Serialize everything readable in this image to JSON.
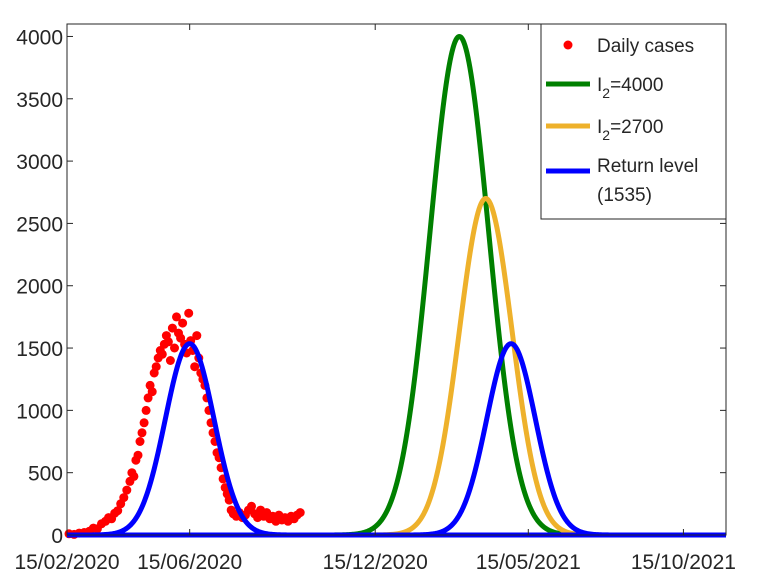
{
  "chart_data": {
    "type": "line",
    "xlim": [
      "2020-02-15",
      "2021-11-26"
    ],
    "ylim": [
      0,
      4100
    ],
    "x_ticks": [
      {
        "date": "2020-02-15",
        "label": "15/02/2020"
      },
      {
        "date": "2020-06-15",
        "label": "15/06/2020"
      },
      {
        "date": "2020-12-15",
        "label": "15/12/2020"
      },
      {
        "date": "2021-05-15",
        "label": "15/05/2021"
      },
      {
        "date": "2021-10-15",
        "label": "15/10/2021"
      }
    ],
    "y_ticks": [
      0,
      500,
      1000,
      1500,
      2000,
      2500,
      3000,
      3500,
      4000
    ],
    "grid": false,
    "legend_position": "top-right",
    "legend": [
      {
        "series": "daily",
        "label": "Daily cases"
      },
      {
        "series": "g4000",
        "label_main": "I",
        "label_sub": "2",
        "label_rest": "=4000"
      },
      {
        "series": "g2700",
        "label_main": "I",
        "label_sub": "2",
        "label_rest": "=2700"
      },
      {
        "series": "ret",
        "label_lines": [
          "Return level",
          "(1535)"
        ]
      }
    ],
    "series": [
      {
        "id": "daily",
        "kind": "scatter",
        "color": "#ff0000",
        "points": [
          [
            "2020-02-17",
            10
          ],
          [
            "2020-02-22",
            5
          ],
          [
            "2020-02-27",
            15
          ],
          [
            "2020-03-03",
            20
          ],
          [
            "2020-03-08",
            30
          ],
          [
            "2020-03-12",
            55
          ],
          [
            "2020-03-16",
            50
          ],
          [
            "2020-03-20",
            90
          ],
          [
            "2020-03-24",
            110
          ],
          [
            "2020-03-27",
            140
          ],
          [
            "2020-03-30",
            130
          ],
          [
            "2020-04-02",
            175
          ],
          [
            "2020-04-05",
            195
          ],
          [
            "2020-04-08",
            250
          ],
          [
            "2020-04-11",
            300
          ],
          [
            "2020-04-14",
            360
          ],
          [
            "2020-04-17",
            430
          ],
          [
            "2020-04-19",
            500
          ],
          [
            "2020-04-21",
            470
          ],
          [
            "2020-04-23",
            600
          ],
          [
            "2020-04-25",
            640
          ],
          [
            "2020-04-27",
            750
          ],
          [
            "2020-04-29",
            820
          ],
          [
            "2020-05-01",
            900
          ],
          [
            "2020-05-03",
            1000
          ],
          [
            "2020-05-05",
            1100
          ],
          [
            "2020-05-07",
            1200
          ],
          [
            "2020-05-09",
            1150
          ],
          [
            "2020-05-11",
            1300
          ],
          [
            "2020-05-13",
            1350
          ],
          [
            "2020-05-15",
            1420
          ],
          [
            "2020-05-17",
            1480
          ],
          [
            "2020-05-19",
            1450
          ],
          [
            "2020-05-21",
            1530
          ],
          [
            "2020-05-23",
            1600
          ],
          [
            "2020-05-25",
            1550
          ],
          [
            "2020-05-27",
            1400
          ],
          [
            "2020-05-29",
            1660
          ],
          [
            "2020-05-31",
            1500
          ],
          [
            "2020-06-02",
            1750
          ],
          [
            "2020-06-04",
            1620
          ],
          [
            "2020-06-06",
            1580
          ],
          [
            "2020-06-08",
            1700
          ],
          [
            "2020-06-10",
            1530
          ],
          [
            "2020-06-12",
            1460
          ],
          [
            "2020-06-14",
            1780
          ],
          [
            "2020-06-16",
            1560
          ],
          [
            "2020-06-18",
            1480
          ],
          [
            "2020-06-20",
            1350
          ],
          [
            "2020-06-22",
            1600
          ],
          [
            "2020-06-24",
            1420
          ],
          [
            "2020-06-26",
            1300
          ],
          [
            "2020-06-28",
            1250
          ],
          [
            "2020-06-30",
            1200
          ],
          [
            "2020-07-02",
            1100
          ],
          [
            "2020-07-04",
            1000
          ],
          [
            "2020-07-06",
            900
          ],
          [
            "2020-07-08",
            820
          ],
          [
            "2020-07-10",
            750
          ],
          [
            "2020-07-12",
            660
          ],
          [
            "2020-07-14",
            620
          ],
          [
            "2020-07-16",
            540
          ],
          [
            "2020-07-18",
            450
          ],
          [
            "2020-07-20",
            380
          ],
          [
            "2020-07-22",
            330
          ],
          [
            "2020-07-24",
            280
          ],
          [
            "2020-07-26",
            200
          ],
          [
            "2020-07-28",
            170
          ],
          [
            "2020-07-31",
            150
          ],
          [
            "2020-08-03",
            180
          ],
          [
            "2020-08-06",
            140
          ],
          [
            "2020-08-09",
            160
          ],
          [
            "2020-08-12",
            200
          ],
          [
            "2020-08-15",
            230
          ],
          [
            "2020-08-18",
            170
          ],
          [
            "2020-08-21",
            140
          ],
          [
            "2020-08-24",
            200
          ],
          [
            "2020-08-27",
            150
          ],
          [
            "2020-08-30",
            180
          ],
          [
            "2020-09-02",
            130
          ],
          [
            "2020-09-05",
            150
          ],
          [
            "2020-09-08",
            110
          ],
          [
            "2020-09-11",
            160
          ],
          [
            "2020-09-14",
            120
          ],
          [
            "2020-09-17",
            140
          ],
          [
            "2020-09-20",
            110
          ],
          [
            "2020-09-23",
            150
          ],
          [
            "2020-09-26",
            130
          ],
          [
            "2020-09-29",
            160
          ],
          [
            "2020-10-02",
            180
          ]
        ]
      },
      {
        "id": "g4000",
        "kind": "gaussian",
        "color": "#008000",
        "peak_date": "2021-03-08",
        "peak_value": 4000,
        "sigma_days": 29
      },
      {
        "id": "g2700",
        "kind": "gaussian",
        "color": "#eeb12b",
        "peak_date": "2021-04-03",
        "peak_value": 2700,
        "sigma_days": 26
      },
      {
        "id": "ret",
        "kind": "gaussian",
        "color": "#0000ff",
        "peak_date": "2021-04-28",
        "peak_value": 1535,
        "sigma_days": 24
      },
      {
        "id": "ret1",
        "kind": "gaussian",
        "color": "#0000ff",
        "peak_date": "2020-06-15",
        "peak_value": 1535,
        "sigma_days": 24
      }
    ]
  }
}
